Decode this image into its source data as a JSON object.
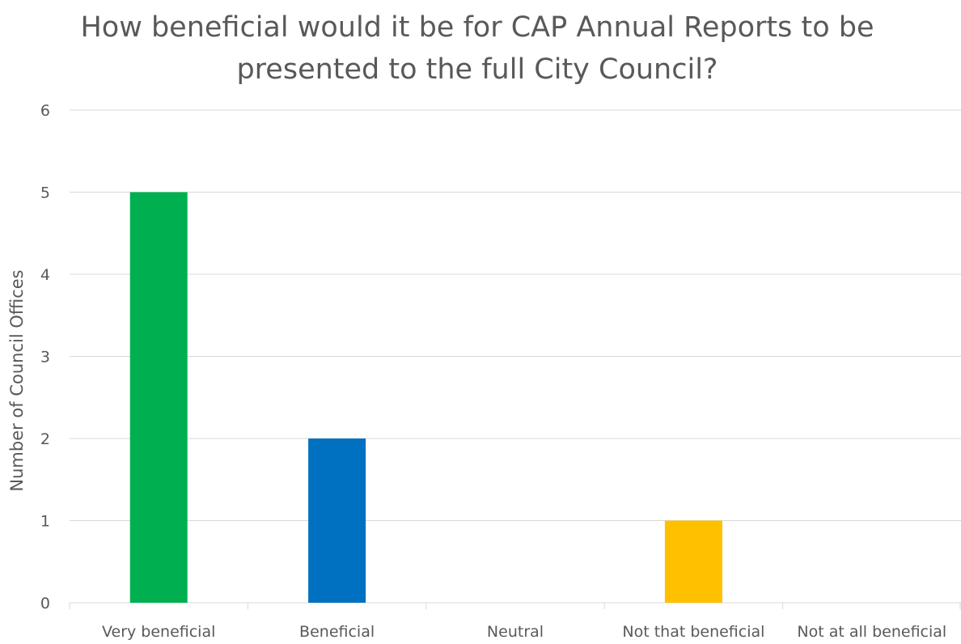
{
  "chart_data": {
    "type": "bar",
    "title": "How beneficial would it be for CAP Annual Reports to be presented to the full City Council?",
    "xlabel": "",
    "ylabel": "Number of Council Offices",
    "categories": [
      "Very beneficial",
      "Beneficial",
      "Neutral",
      "Not that beneficial",
      "Not at all beneficial"
    ],
    "values": [
      5,
      2,
      0,
      1,
      0
    ],
    "bar_colors": [
      "#00B050",
      "#0070C0",
      "#7F7F7F",
      "#FFC000",
      "#C00000"
    ],
    "ylim": [
      0,
      6
    ],
    "yticks": [
      0,
      1,
      2,
      3,
      4,
      5,
      6
    ],
    "grid": true,
    "legend": "none"
  }
}
